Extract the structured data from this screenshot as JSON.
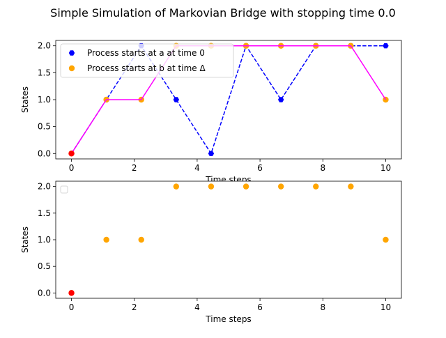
{
  "figure": {
    "title": "Simple Simulation of Markovian Bridge with stopping time 0.0"
  },
  "colors": {
    "blue": "#0000ff",
    "orange": "#ffa500",
    "magenta": "#ff00ff",
    "red": "#ff0000"
  },
  "chart_data": [
    {
      "type": "line",
      "xlabel": "Time steps",
      "ylabel": "States",
      "xlim": [
        -0.5,
        10.5
      ],
      "ylim": [
        -0.1,
        2.1
      ],
      "xticks": [
        0,
        2,
        4,
        6,
        8,
        10
      ],
      "yticks": [
        0.0,
        0.5,
        1.0,
        1.5,
        2.0
      ],
      "xtick_labels": [
        "0",
        "2",
        "4",
        "6",
        "8",
        "10"
      ],
      "ytick_labels": [
        "0.0",
        "0.5",
        "1.0",
        "1.5",
        "2.0"
      ],
      "legend_position": "upper-left",
      "x": [
        0,
        1.111,
        2.222,
        3.333,
        4.444,
        5.556,
        6.667,
        7.778,
        8.889,
        10
      ],
      "series": [
        {
          "name": "Process starts at a at time 0",
          "values": [
            0,
            1,
            2,
            1,
            0,
            2,
            1,
            2,
            2,
            2
          ],
          "color": "#0000ff",
          "style": "dashed-markers"
        },
        {
          "name": "Process starts at b at time Δ",
          "values": [
            0,
            1,
            1,
            2,
            2,
            2,
            2,
            2,
            2,
            1
          ],
          "color": "#ffa500",
          "style": "markers"
        },
        {
          "name": "",
          "values": [
            0,
            1,
            1,
            2,
            2,
            2,
            2,
            2,
            2,
            1
          ],
          "color": "#ff00ff",
          "style": "solid-line"
        }
      ],
      "highlight_point": {
        "x": 0,
        "y": 0,
        "color": "#ff0000"
      }
    },
    {
      "type": "scatter",
      "xlabel": "Time steps",
      "ylabel": "States",
      "xlim": [
        -0.5,
        10.5
      ],
      "ylim": [
        -0.1,
        2.1
      ],
      "xticks": [
        0,
        2,
        4,
        6,
        8,
        10
      ],
      "yticks": [
        0.0,
        0.5,
        1.0,
        1.5,
        2.0
      ],
      "xtick_labels": [
        "0",
        "2",
        "4",
        "6",
        "8",
        "10"
      ],
      "ytick_labels": [
        "0.0",
        "0.5",
        "1.0",
        "1.5",
        "2.0"
      ],
      "legend_position": "upper-left",
      "x": [
        0,
        1.111,
        2.222,
        3.333,
        4.444,
        5.556,
        6.667,
        7.778,
        8.889,
        10
      ],
      "series": [
        {
          "values": [
            0,
            1,
            1,
            2,
            2,
            2,
            2,
            2,
            2,
            1
          ],
          "color": "#ffa500",
          "style": "markers"
        }
      ],
      "highlight_point": {
        "x": 0,
        "y": 0,
        "color": "#ff0000"
      }
    }
  ]
}
